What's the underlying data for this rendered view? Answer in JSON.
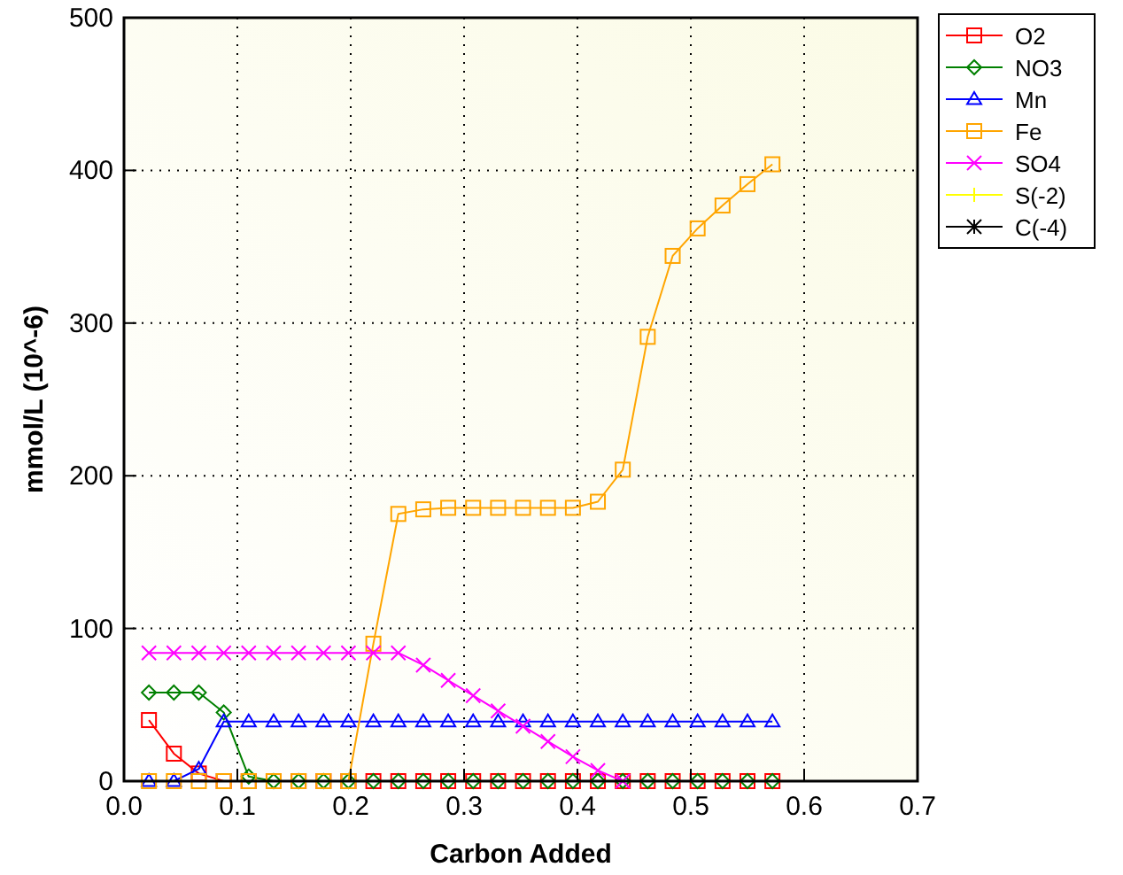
{
  "chart_data": {
    "type": "line",
    "xlabel": "Carbon Added",
    "ylabel": "mmol/L (10^-6)",
    "x": [
      0.022,
      0.044,
      0.066,
      0.088,
      0.11,
      0.132,
      0.154,
      0.176,
      0.198,
      0.22,
      0.242,
      0.264,
      0.286,
      0.308,
      0.33,
      0.352,
      0.374,
      0.396,
      0.418,
      0.44,
      0.462,
      0.484,
      0.506,
      0.528,
      0.55,
      0.572
    ],
    "series": [
      {
        "name": "O2",
        "color": "#ff0000",
        "marker": "square",
        "values": [
          40,
          18,
          5,
          0,
          0,
          0,
          0,
          0,
          0,
          0,
          0,
          0,
          0,
          0,
          0,
          0,
          0,
          0,
          0,
          0,
          0,
          0,
          0,
          0,
          0,
          0
        ]
      },
      {
        "name": "NO3",
        "color": "#008000",
        "marker": "diamond",
        "values": [
          58,
          58,
          58,
          45,
          3,
          0,
          0,
          0,
          0,
          0,
          0,
          0,
          0,
          0,
          0,
          0,
          0,
          0,
          0,
          0,
          0,
          0,
          0,
          0,
          0,
          0
        ]
      },
      {
        "name": "Mn",
        "color": "#0000ff",
        "marker": "triangle",
        "values": [
          0,
          0,
          8,
          39,
          39,
          39,
          39,
          39,
          39,
          39,
          39,
          39,
          39,
          39,
          39,
          39,
          39,
          39,
          39,
          39,
          39,
          39,
          39,
          39,
          39,
          39
        ]
      },
      {
        "name": "Fe",
        "color": "#ffa500",
        "marker": "square",
        "values": [
          0,
          0,
          0,
          0,
          0,
          0,
          0,
          0,
          0,
          90,
          175,
          178,
          179,
          179,
          179,
          179,
          179,
          179,
          183,
          204,
          291,
          344,
          362,
          377,
          391,
          404
        ]
      },
      {
        "name": "SO4",
        "color": "#ff00ff",
        "marker": "cross",
        "values": [
          84,
          84,
          84,
          84,
          84,
          84,
          84,
          84,
          84,
          84,
          84,
          76,
          66,
          56,
          46,
          36,
          26,
          16,
          7,
          0,
          null,
          null,
          null,
          null,
          null,
          null
        ]
      },
      {
        "name": "S(-2)",
        "color": "#ffff00",
        "marker": "plus",
        "values": [
          null,
          null,
          null,
          null,
          null,
          null,
          null,
          null,
          null,
          null,
          null,
          null,
          null,
          null,
          null,
          null,
          null,
          null,
          null,
          null,
          null,
          null,
          null,
          null,
          null,
          null
        ]
      },
      {
        "name": "C(-4)",
        "color": "#000000",
        "marker": "star",
        "values": [
          null,
          null,
          null,
          null,
          null,
          null,
          null,
          null,
          null,
          null,
          null,
          null,
          null,
          null,
          null,
          null,
          null,
          null,
          null,
          null,
          null,
          null,
          null,
          null,
          null,
          null
        ]
      }
    ],
    "xlim": [
      0,
      0.7
    ],
    "xticks": [
      {
        "value": 0,
        "label": "0.0"
      },
      0.1,
      0.2,
      0.3,
      0.4,
      0.5,
      0.6,
      0.7
    ],
    "ylim": [
      0,
      500
    ],
    "yticks": [
      0,
      100,
      200,
      300,
      400,
      500
    ],
    "grid": true,
    "legend": "top right",
    "line_style": "solid"
  }
}
